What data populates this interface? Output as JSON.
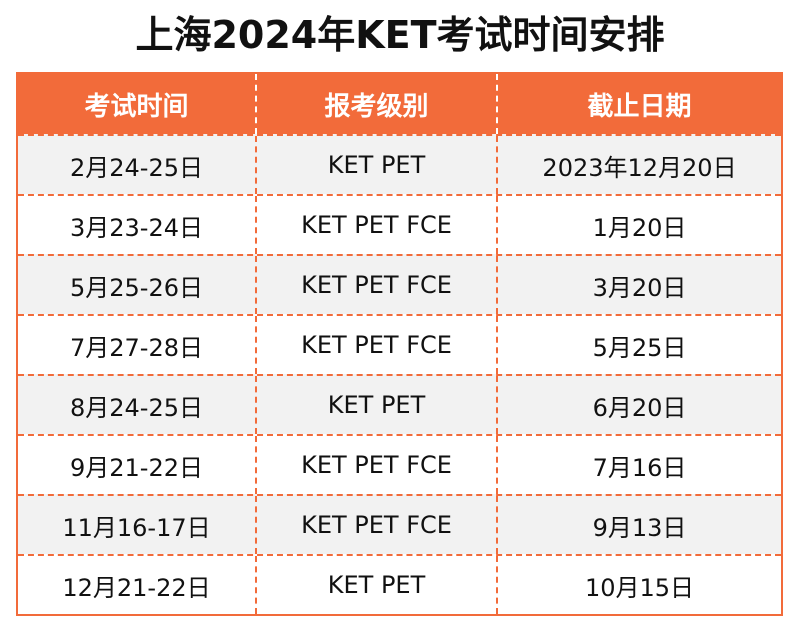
{
  "title": "上海2024年KET考试时间安排",
  "colors": {
    "accent": "#f26b3a",
    "stripe": "#f2f2f2",
    "header_text": "#ffffff"
  },
  "table": {
    "headers": [
      "考试时间",
      "报考级别",
      "截止日期"
    ],
    "rows": [
      [
        "2月24-25日",
        "KET PET",
        "2023年12月20日"
      ],
      [
        "3月23-24日",
        "KET PET FCE",
        "1月20日"
      ],
      [
        "5月25-26日",
        "KET PET FCE",
        "3月20日"
      ],
      [
        "7月27-28日",
        "KET PET FCE",
        "5月25日"
      ],
      [
        "8月24-25日",
        "KET PET",
        "6月20日"
      ],
      [
        "9月21-22日",
        "KET PET FCE",
        "7月16日"
      ],
      [
        "11月16-17日",
        "KET PET FCE",
        "9月13日"
      ],
      [
        "12月21-22日",
        "KET PET",
        "10月15日"
      ]
    ]
  }
}
